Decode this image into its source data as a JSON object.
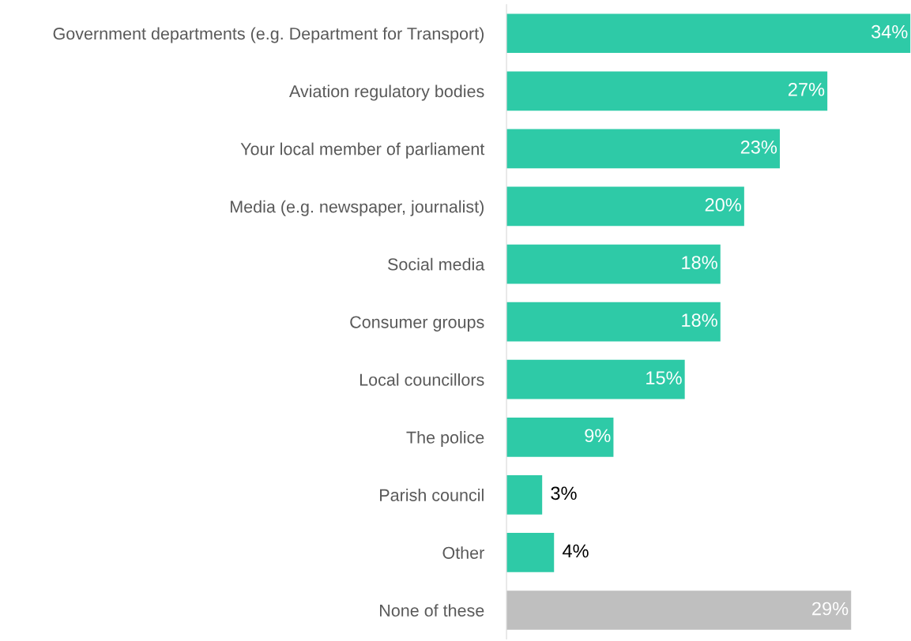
{
  "chart_data": {
    "type": "bar",
    "orientation": "horizontal",
    "categories": [
      "Government departments (e.g. Department for Transport)",
      "Aviation regulatory bodies",
      "Your local member of parliament",
      "Media (e.g. newspaper, journalist)",
      "Social media",
      "Consumer groups",
      "Local councillors",
      "The police",
      "Parish council",
      "Other",
      "None of these"
    ],
    "values": [
      34,
      27,
      23,
      20,
      18,
      18,
      15,
      9,
      3,
      4,
      29
    ],
    "colors": [
      "#2ecaa7",
      "#2ecaa7",
      "#2ecaa7",
      "#2ecaa7",
      "#2ecaa7",
      "#2ecaa7",
      "#2ecaa7",
      "#2ecaa7",
      "#2ecaa7",
      "#2ecaa7",
      "#bfbfbf"
    ],
    "value_labels": [
      "34%",
      "27%",
      "23%",
      "20%",
      "18%",
      "18%",
      "15%",
      "9%",
      "3%",
      "4%",
      "29%"
    ],
    "tick_labels": "y",
    "grid": false,
    "legend": false
  }
}
